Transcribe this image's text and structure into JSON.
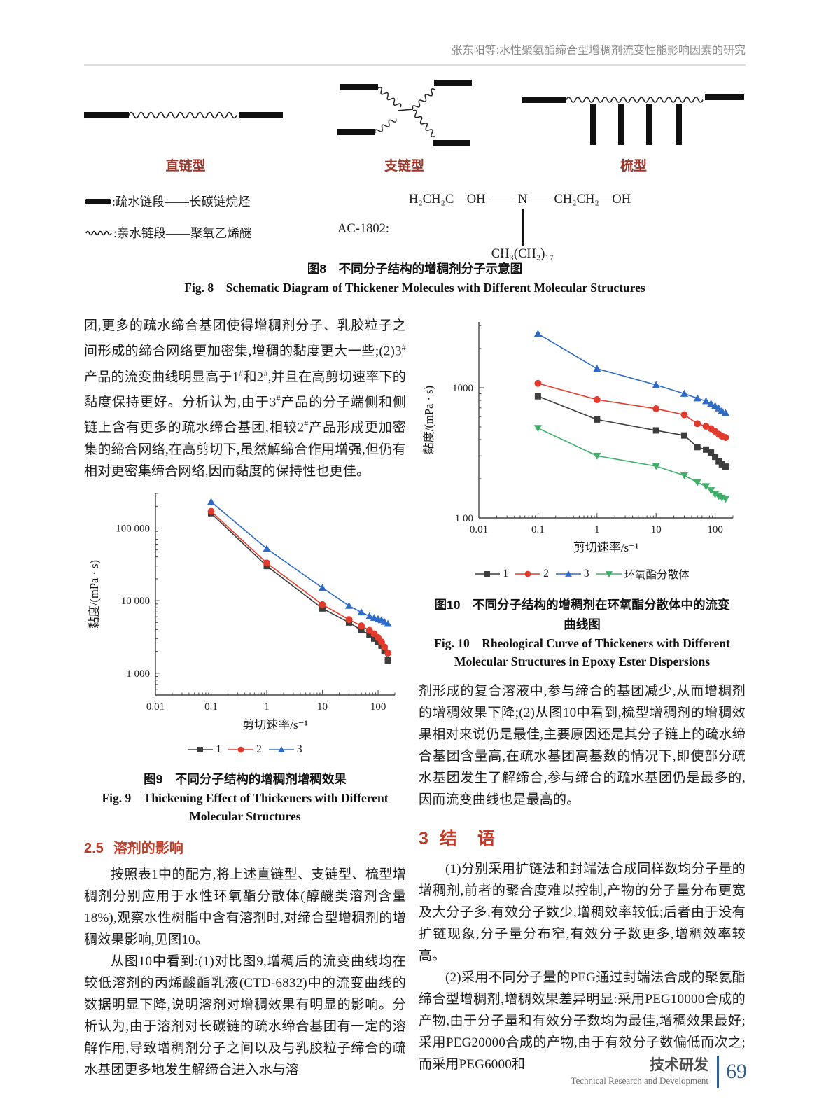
{
  "header": {
    "running_title": "张东阳等:水性聚氨酯缔合型增稠剂流变性能影响因素的研究"
  },
  "figure8": {
    "structure_labels": [
      "直链型",
      "支链型",
      "梳型"
    ],
    "legend": [
      {
        "symbol": "hydrophobic-bar",
        "label": ":疏水链段——长碳链烷烃"
      },
      {
        "symbol": "hydrophilic-wave",
        "label": ":亲水链段——聚氧乙烯醚"
      }
    ],
    "ac1802": {
      "label": "AC-1802:",
      "formula_left": "H₂CH₂C—OH",
      "dash_left": "——",
      "formula_center": "N",
      "formula_right": "——CH₂CH₂—OH",
      "formula_bottom": "CH₃(CH₂)₁₇"
    },
    "caption_zh": "图8　不同分子结构的增稠剂分子示意图",
    "caption_en": "Fig. 8　Schematic Diagram of Thickener Molecules with Different Molecular Structures"
  },
  "left_column": {
    "para1": "团,更多的疏水缔合基团使得增稠剂分子、乳胶粒子之间形成的缔合网络更加密集,增稠的黏度更大一些;(2)3#产品的流变曲线明显高于1#和2#,并且在高剪切速率下的黏度保持更好。分析认为,由于3#产品的分子端侧和侧链上含有更多的疏水缔合基团,相较2#产品形成更加密集的缔合网络,在高剪切下,虽然解缔合作用增强,但仍有相对更密集缔合网络,因而黏度的保持性也更佳。",
    "figure9": {
      "caption_zh": "图9　不同分子结构的增稠剂增稠效果",
      "caption_en_line1": "Fig. 9　Thickening Effect of Thickeners with Different",
      "caption_en_line2": "Molecular Structures"
    },
    "section25": {
      "number": "2.5",
      "title": "溶剂的影响"
    },
    "para2": "按照表1中的配方,将上述直链型、支链型、梳型增稠剂分别应用于水性环氧酯分散体(醇醚类溶剂含量18%),观察水性树脂中含有溶剂时,对缔合型增稠剂的增稠效果影响,见图10。",
    "para3": "从图10中看到:(1)对比图9,增稠后的流变曲线均在较低溶剂的丙烯酸酯乳液(CTD-6832)中的流变曲线的数据明显下降,说明溶剂对增稠效果有明显的影响。分析认为,由于溶剂对长碳链的疏水缔合基团有一定的溶解作用,导致增稠剂分子之间以及与乳胶粒子缔合的疏水基团更多地发生解缔合进入水与溶"
  },
  "right_column": {
    "figure10": {
      "caption_zh_line1": "图10　不同分子结构的增稠剂在环氧酯分散体中的流变",
      "caption_zh_line2": "曲线图",
      "caption_en_line1": "Fig. 10　Rheological Curve of Thickeners with Different",
      "caption_en_line2": "Molecular Structures in Epoxy Ester Dispersions"
    },
    "para1": "剂形成的复合溶液中,参与缔合的基团减少,从而增稠剂的增稠效果下降;(2)从图10中看到,梳型增稠剂的增稠效果相对来说仍是最佳,主要原因还是其分子链上的疏水缔合基团含量高,在疏水基团高基数的情况下,即使部分疏水基团发生了解缔合,参与缔合的疏水基团仍是最多的,因而流变曲线也是最高的。",
    "section3": {
      "number": "3",
      "title": "结　语"
    },
    "para2": "(1)分别采用扩链法和封端法合成同样数均分子量的增稠剂,前者的聚合度难以控制,产物的分子量分布更宽及大分子多,有效分子数少,增稠效率较低;后者由于没有扩链现象,分子量分布窄,有效分子数更多,增稠效率较高。",
    "para3": "(2)采用不同分子量的PEG通过封端法合成的聚氨酯缔合型增稠剂,增稠效果差异明显:采用PEG10000合成的产物,由于分子量和有效分子数均为最佳,增稠效果最好;采用PEG20000合成的产物,由于有效分子数偏低而次之;而采用PEG6000和"
  },
  "footer": {
    "zh": "技术研发",
    "en": "Technical Research and Development",
    "page": "69"
  },
  "chart_data": [
    {
      "id": "fig9",
      "type": "line",
      "x_scale": "log",
      "y_scale": "log",
      "xlim": [
        0.01,
        200
      ],
      "ylim": [
        500,
        300000
      ],
      "xlabel": "剪切速率/s⁻¹",
      "ylabel": "黏度/(mPa · s)",
      "x_ticks": [
        [
          0.01,
          "0.01"
        ],
        [
          0.1,
          "0.1"
        ],
        [
          1,
          "1"
        ],
        [
          10,
          "10"
        ],
        [
          100,
          "100"
        ]
      ],
      "y_ticks": [
        [
          1000,
          "1 000"
        ],
        [
          10000,
          "10 000"
        ],
        [
          100000,
          "100 000"
        ]
      ],
      "x": [
        0.1,
        1,
        10,
        30,
        50,
        70,
        85,
        100,
        115,
        130,
        150
      ],
      "series": [
        {
          "name": "1",
          "color": "#3d3d3d",
          "marker": "square",
          "values": [
            160000,
            30000,
            7800,
            5000,
            3900,
            3400,
            3000,
            2700,
            2400,
            2000,
            1500
          ]
        },
        {
          "name": "2",
          "color": "#e23a2c",
          "marker": "circle",
          "values": [
            170000,
            33000,
            8800,
            5500,
            4500,
            3900,
            3500,
            3100,
            2700,
            2300,
            1900
          ]
        },
        {
          "name": "3",
          "color": "#2f6bc4",
          "marker": "triangle-up",
          "values": [
            230000,
            52000,
            15000,
            8500,
            6900,
            6100,
            5800,
            5600,
            5400,
            5100,
            4800
          ]
        }
      ],
      "legend_position": "bottom"
    },
    {
      "id": "fig10",
      "type": "line",
      "x_scale": "log",
      "y_scale": "log",
      "xlim": [
        0.01,
        200
      ],
      "ylim": [
        100,
        3200
      ],
      "xlabel": "剪切速率/s⁻¹",
      "ylabel": "黏度/(mPa · s)",
      "x_ticks": [
        [
          0.01,
          "0.01"
        ],
        [
          0.1,
          "0.1"
        ],
        [
          1,
          "1"
        ],
        [
          10,
          "10"
        ],
        [
          100,
          "100"
        ]
      ],
      "y_ticks": [
        [
          100,
          "1 00"
        ],
        [
          1000,
          "1000"
        ]
      ],
      "x": [
        0.1,
        1,
        10,
        30,
        50,
        70,
        85,
        100,
        115,
        130,
        150
      ],
      "series": [
        {
          "name": "1",
          "color": "#3d3d3d",
          "marker": "square",
          "values": [
            860,
            570,
            470,
            430,
            350,
            335,
            318,
            295,
            272,
            258,
            248
          ]
        },
        {
          "name": "2",
          "color": "#e23a2c",
          "marker": "circle",
          "values": [
            1080,
            810,
            690,
            620,
            530,
            505,
            485,
            462,
            440,
            425,
            415
          ]
        },
        {
          "name": "3",
          "color": "#2f6bc4",
          "marker": "triangle-up",
          "values": [
            2600,
            1400,
            1050,
            900,
            830,
            790,
            755,
            725,
            695,
            665,
            640
          ]
        },
        {
          "name": "环氧酯分散体",
          "color": "#3eb06a",
          "marker": "triangle-down",
          "values": [
            490,
            300,
            250,
            212,
            188,
            175,
            163,
            152,
            147,
            143,
            140
          ]
        }
      ],
      "legend_position": "bottom"
    }
  ]
}
